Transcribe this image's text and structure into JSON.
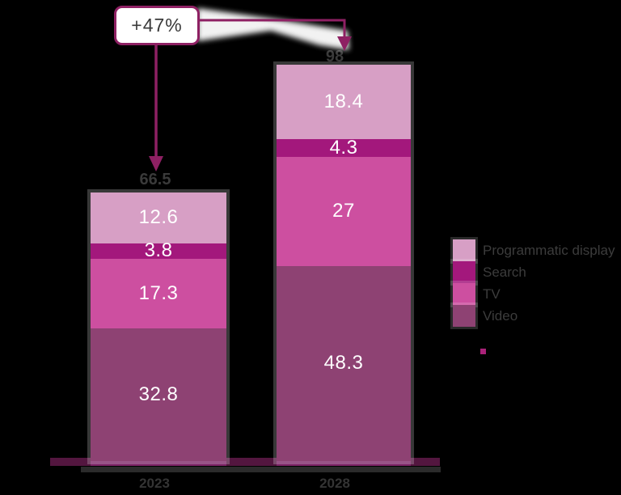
{
  "chart_data": {
    "type": "bar",
    "stacked": true,
    "orientation": "vertical",
    "categories": [
      "2023",
      "2028"
    ],
    "series": [
      {
        "name": "Programmatic display",
        "color": "#d79fc5",
        "values": [
          12.6,
          18.4
        ]
      },
      {
        "name": "Search",
        "color": "#a3187c",
        "values": [
          3.8,
          4.3
        ]
      },
      {
        "name": "TV",
        "color": "#cd4fa0",
        "values": [
          17.3,
          27
        ]
      },
      {
        "name": "Video",
        "color": "#8e4273",
        "values": [
          32.8,
          48.3
        ]
      }
    ],
    "totals": [
      "66.5",
      "98"
    ],
    "annotation": "+47%",
    "title": "",
    "xlabel": "",
    "ylabel": "",
    "ylim": [
      0,
      98
    ],
    "grid": false,
    "legend_position": "right"
  },
  "colors": {
    "connector": "#8e2063",
    "callout_border": "#8e2063",
    "callout_background": "#ffffff",
    "dark_text": "#3a3a3a",
    "value_text": "#ffffff",
    "axis_line": "#7c2466",
    "footnote_dot": "#a92178",
    "background": "#000000"
  }
}
